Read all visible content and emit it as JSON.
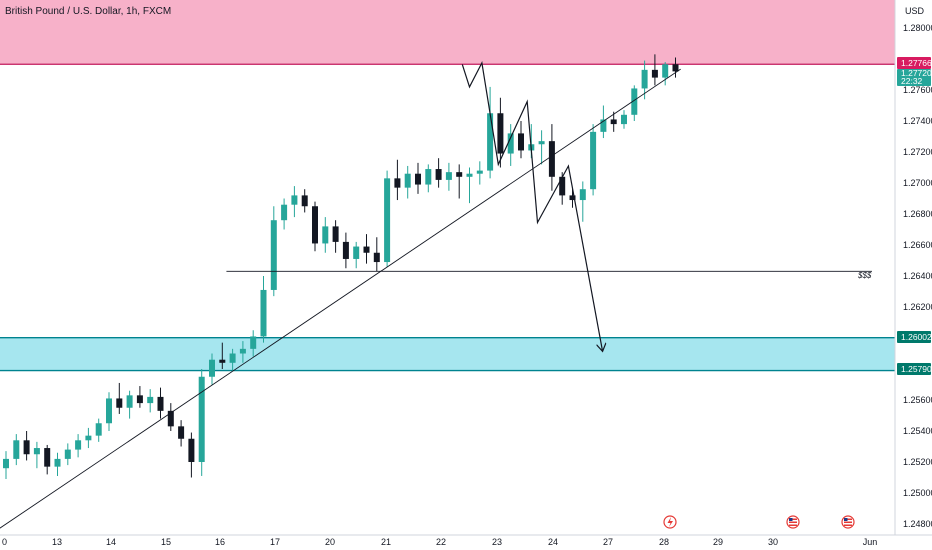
{
  "chart_data": {
    "type": "candlestick",
    "title": "British Pound / U.S. Dollar, 1h, FXCM",
    "currency": "USD",
    "ylim": [
      1.2478,
      1.2812
    ],
    "y_ticks": [
      "1.28000",
      "1.27600",
      "1.27400",
      "1.27200",
      "1.27000",
      "1.26800",
      "1.26600",
      "1.26400",
      "1.26200",
      "1.25600",
      "1.25400",
      "1.25200",
      "1.25000",
      "1.24800"
    ],
    "x_ticks": [
      "0",
      "13",
      "14",
      "15",
      "16",
      "17",
      "20",
      "21",
      "22",
      "23",
      "24",
      "27",
      "28",
      "29",
      "30",
      "Jun"
    ],
    "price_tags": {
      "last": "1.27766",
      "current": "1.27720",
      "countdown": "22:32",
      "upper_zone_edge": "1.26002",
      "lower_zone_edge": "1.25790"
    },
    "level_label": "$$$",
    "colors": {
      "up": "#26a69a",
      "down": "#131722",
      "resistance_zone": "#f7b1c9",
      "resistance_line": "#c2185b",
      "support_zone": "#a6e6ef",
      "support_line": "#00838f",
      "tag_red": "#d81b60",
      "tag_teal": "#26a69a",
      "tag_dark_teal": "#00796b"
    },
    "icons": [
      "lightning-event-icon",
      "us-flag-event-icon",
      "us-flag-event-icon"
    ],
    "zones": {
      "resistance": {
        "from": 1.27766,
        "to": 1.2812
      },
      "support": {
        "from": 1.2579,
        "to": 1.26002
      }
    },
    "liquidity_level": 1.2643,
    "trendline": [
      [
        -1,
        1.24755
      ],
      [
        65.5,
        1.27735
      ]
    ],
    "projection": [
      [
        44.3,
        1.27765
      ],
      [
        45.0,
        1.2762
      ],
      [
        46.2,
        1.27775
      ],
      [
        47.8,
        1.2712
      ],
      [
        50.6,
        1.27525
      ],
      [
        51.6,
        1.26745
      ],
      [
        54.6,
        1.2711
      ],
      [
        57.9,
        1.2592
      ]
    ],
    "candles": [
      [
        1.2516,
        1.2527,
        1.2509,
        1.2522
      ],
      [
        1.2522,
        1.2538,
        1.2518,
        1.2534
      ],
      [
        1.2534,
        1.254,
        1.2521,
        1.2525
      ],
      [
        1.2525,
        1.2533,
        1.2516,
        1.2529
      ],
      [
        1.2529,
        1.2531,
        1.2512,
        1.2517
      ],
      [
        1.2517,
        1.2526,
        1.2511,
        1.2522
      ],
      [
        1.2522,
        1.2532,
        1.2518,
        1.2528
      ],
      [
        1.2528,
        1.2538,
        1.2523,
        1.2534
      ],
      [
        1.2534,
        1.2542,
        1.2529,
        1.2537
      ],
      [
        1.2537,
        1.2548,
        1.2533,
        1.2545
      ],
      [
        1.2545,
        1.2565,
        1.254,
        1.2561
      ],
      [
        1.2561,
        1.2571,
        1.2551,
        1.2555
      ],
      [
        1.2555,
        1.2566,
        1.2548,
        1.2563
      ],
      [
        1.2563,
        1.2569,
        1.2555,
        1.2558
      ],
      [
        1.2558,
        1.2567,
        1.2552,
        1.2562
      ],
      [
        1.2562,
        1.2568,
        1.2548,
        1.2553
      ],
      [
        1.2553,
        1.2558,
        1.254,
        1.2543
      ],
      [
        1.2543,
        1.2547,
        1.253,
        1.2535
      ],
      [
        1.2535,
        1.2539,
        1.251,
        1.252
      ],
      [
        1.252,
        1.258,
        1.2511,
        1.2575
      ],
      [
        1.2575,
        1.259,
        1.257,
        1.2586
      ],
      [
        1.2586,
        1.2597,
        1.258,
        1.2584
      ],
      [
        1.2584,
        1.2593,
        1.2579,
        1.259
      ],
      [
        1.259,
        1.2598,
        1.2584,
        1.2593
      ],
      [
        1.2593,
        1.2605,
        1.2588,
        1.2601
      ],
      [
        1.2601,
        1.264,
        1.2597,
        1.2631
      ],
      [
        1.2631,
        1.2685,
        1.2627,
        1.2676
      ],
      [
        1.2676,
        1.269,
        1.267,
        1.2686
      ],
      [
        1.2686,
        1.2698,
        1.2678,
        1.2692
      ],
      [
        1.2692,
        1.2696,
        1.2681,
        1.2685
      ],
      [
        1.2685,
        1.2688,
        1.2656,
        1.2661
      ],
      [
        1.2661,
        1.2678,
        1.2655,
        1.2672
      ],
      [
        1.2672,
        1.2676,
        1.2655,
        1.2662
      ],
      [
        1.2662,
        1.2668,
        1.2645,
        1.2651
      ],
      [
        1.2651,
        1.2662,
        1.2645,
        1.2659
      ],
      [
        1.2659,
        1.2667,
        1.2648,
        1.2655
      ],
      [
        1.2655,
        1.2665,
        1.2643,
        1.2649
      ],
      [
        1.2649,
        1.2708,
        1.2646,
        1.2703
      ],
      [
        1.2703,
        1.2715,
        1.2689,
        1.2697
      ],
      [
        1.2697,
        1.2711,
        1.269,
        1.2706
      ],
      [
        1.2706,
        1.2713,
        1.2693,
        1.2699
      ],
      [
        1.2699,
        1.2712,
        1.2694,
        1.2709
      ],
      [
        1.2709,
        1.2716,
        1.2697,
        1.2702
      ],
      [
        1.2702,
        1.2713,
        1.2695,
        1.2707
      ],
      [
        1.2707,
        1.2712,
        1.269,
        1.2704
      ],
      [
        1.2704,
        1.271,
        1.2687,
        1.2706
      ],
      [
        1.2706,
        1.2714,
        1.2699,
        1.2708
      ],
      [
        1.2708,
        1.2762,
        1.2703,
        1.2745
      ],
      [
        1.2745,
        1.2755,
        1.271,
        1.2719
      ],
      [
        1.2719,
        1.2738,
        1.2711,
        1.2732
      ],
      [
        1.2732,
        1.274,
        1.2716,
        1.2721
      ],
      [
        1.2721,
        1.2738,
        1.2716,
        1.2725
      ],
      [
        1.2725,
        1.2734,
        1.2712,
        1.2727
      ],
      [
        1.2727,
        1.2738,
        1.2695,
        1.2704
      ],
      [
        1.2704,
        1.2707,
        1.2686,
        1.2692
      ],
      [
        1.2692,
        1.2697,
        1.2684,
        1.2689
      ],
      [
        1.2689,
        1.2701,
        1.2675,
        1.2696
      ],
      [
        1.2696,
        1.2738,
        1.2692,
        1.2733
      ],
      [
        1.2733,
        1.275,
        1.2729,
        1.2741
      ],
      [
        1.2741,
        1.2746,
        1.2733,
        1.2738
      ],
      [
        1.2738,
        1.2747,
        1.2735,
        1.2744
      ],
      [
        1.2744,
        1.2763,
        1.274,
        1.2761
      ],
      [
        1.2761,
        1.2779,
        1.2754,
        1.2773
      ],
      [
        1.2773,
        1.2783,
        1.2763,
        1.2768
      ],
      [
        1.2768,
        1.2778,
        1.2763,
        1.27766
      ],
      [
        1.27766,
        1.2781,
        1.2768,
        1.2772
      ]
    ]
  },
  "overlay_icons": {
    "lightning": "lightning-event-icon",
    "flag": "us-flag-event-icon"
  }
}
